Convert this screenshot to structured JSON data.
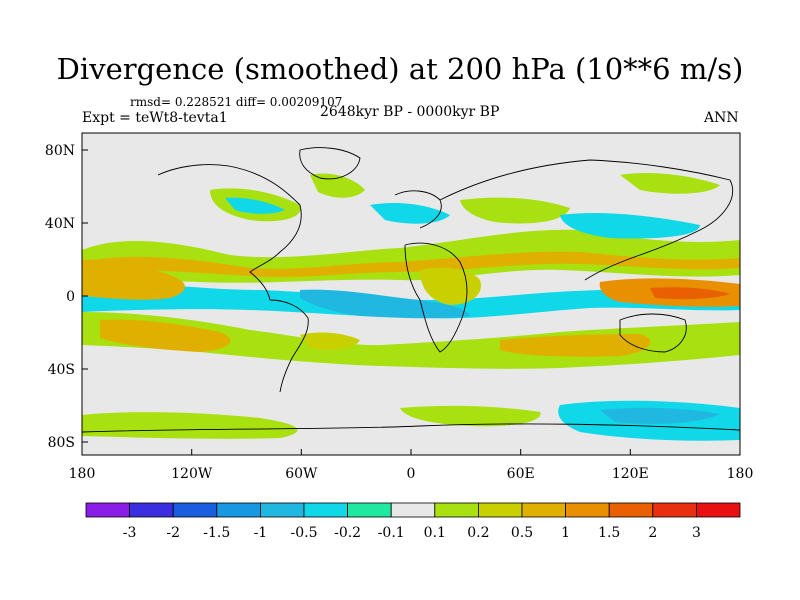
{
  "title": "Divergence (smoothed) at 200 hPa (10**6 m/s)",
  "stats": "rmsd= 0.228521 diff= 0.00209107",
  "experiment": "Expt = teWt8-tevta1",
  "period": "2648kyr BP - 0000kyr BP",
  "season": "ANN",
  "lat_labels": [
    "80N",
    "40N",
    "0",
    "40S",
    "80S"
  ],
  "lon_labels": [
    "180",
    "120W",
    "60W",
    "0",
    "60E",
    "120E",
    "180"
  ],
  "colorbar": {
    "labels": [
      "-3",
      "-2",
      "-1.5",
      "-1",
      "-0.5",
      "-0.2",
      "-0.1",
      "0.1",
      "0.2",
      "0.5",
      "1",
      "1.5",
      "2",
      "3"
    ],
    "colors": [
      "#8a1ee8",
      "#3a2ee0",
      "#1a5ee0",
      "#1898e0",
      "#20b8e0",
      "#10d8e8",
      "#20e8a0",
      "#e8e8e8",
      "#a8e010",
      "#c8d000",
      "#e0b000",
      "#e89000",
      "#e86000",
      "#e83010",
      "#e81010"
    ]
  },
  "palette": {
    "neutral": "#e8e8e8",
    "green": "#a8e010",
    "olive": "#c8d000",
    "gold": "#e0b000",
    "orange": "#e89000",
    "cyan": "#10d8e8",
    "aqua": "#20e8a0",
    "blue": "#20b8e0"
  }
}
